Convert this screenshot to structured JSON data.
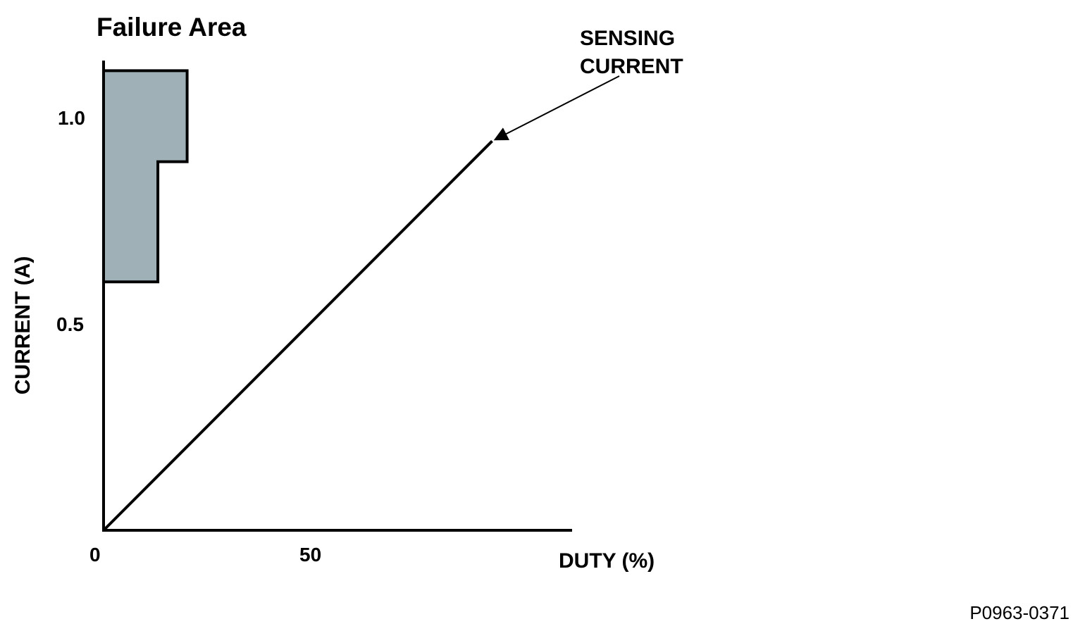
{
  "figure_id": "P0963-0371",
  "chart_data": {
    "type": "line",
    "x_label": "DUTY (%)",
    "y_label": "CURRENT (A)",
    "x_ticks": [
      {
        "value": 0,
        "label": "0"
      },
      {
        "value": 50,
        "label": "50"
      }
    ],
    "y_ticks": [
      {
        "value": 0.5,
        "label": "0.5"
      },
      {
        "value": 1.0,
        "label": "1.0"
      }
    ],
    "xlim": [
      0,
      112
    ],
    "ylim": [
      0,
      1.12
    ],
    "series": [
      {
        "name": "SENSING CURRENT",
        "points": [
          [
            0,
            0
          ],
          [
            93,
            0.94
          ]
        ]
      }
    ],
    "regions": [
      {
        "name": "Failure Area",
        "fill_color": "#9fb1b6",
        "polygon": [
          [
            0,
            1.11
          ],
          [
            20,
            1.11
          ],
          [
            20,
            0.89
          ],
          [
            13,
            0.89
          ],
          [
            13,
            0.6
          ],
          [
            0,
            0.6
          ]
        ]
      }
    ],
    "annotations": [
      {
        "lines": [
          "SENSING",
          "CURRENT"
        ],
        "points_to": [
          93,
          0.94
        ]
      }
    ]
  }
}
